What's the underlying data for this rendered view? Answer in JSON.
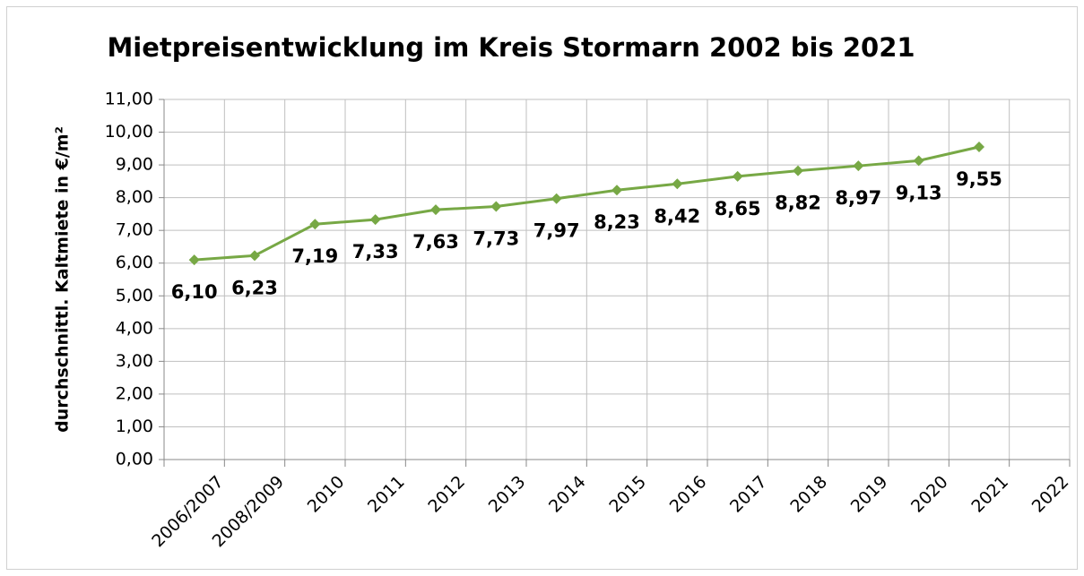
{
  "chart_data": {
    "type": "line",
    "title": "Mietpreisentwicklung im Kreis Stormarn 2002 bis 2021",
    "y_label": "durchschnittl. Kaltmiete in €/m²",
    "categories": [
      "2006/2007",
      "2008/2009",
      "2010",
      "2011",
      "2012",
      "2013",
      "2014",
      "2015",
      "2016",
      "2017",
      "2018",
      "2019",
      "2020",
      "2021",
      "2022"
    ],
    "series": [
      {
        "name": "Kaltmiete",
        "color": "#77a845",
        "values": [
          6.1,
          6.23,
          7.19,
          7.33,
          7.63,
          7.73,
          7.97,
          8.23,
          8.42,
          8.65,
          8.82,
          8.97,
          9.13,
          9.55,
          null
        ],
        "value_labels": [
          "6,10",
          "6,23",
          "7,19",
          "7,33",
          "7,63",
          "7,73",
          "7,97",
          "8,23",
          "8,42",
          "8,65",
          "8,82",
          "8,97",
          "9,13",
          "9,55",
          null
        ]
      }
    ],
    "ylim": [
      0,
      11
    ],
    "yticks": [
      {
        "value": 0,
        "label": "0,00"
      },
      {
        "value": 1,
        "label": "1,00"
      },
      {
        "value": 2,
        "label": "2,00"
      },
      {
        "value": 3,
        "label": "3,00"
      },
      {
        "value": 4,
        "label": "4,00"
      },
      {
        "value": 5,
        "label": "5,00"
      },
      {
        "value": 6,
        "label": "6,00"
      },
      {
        "value": 7,
        "label": "7,00"
      },
      {
        "value": 8,
        "label": "8,00"
      },
      {
        "value": 9,
        "label": "9,00"
      },
      {
        "value": 10,
        "label": "10,00"
      },
      {
        "value": 11,
        "label": "11,00"
      }
    ],
    "grid": true
  }
}
